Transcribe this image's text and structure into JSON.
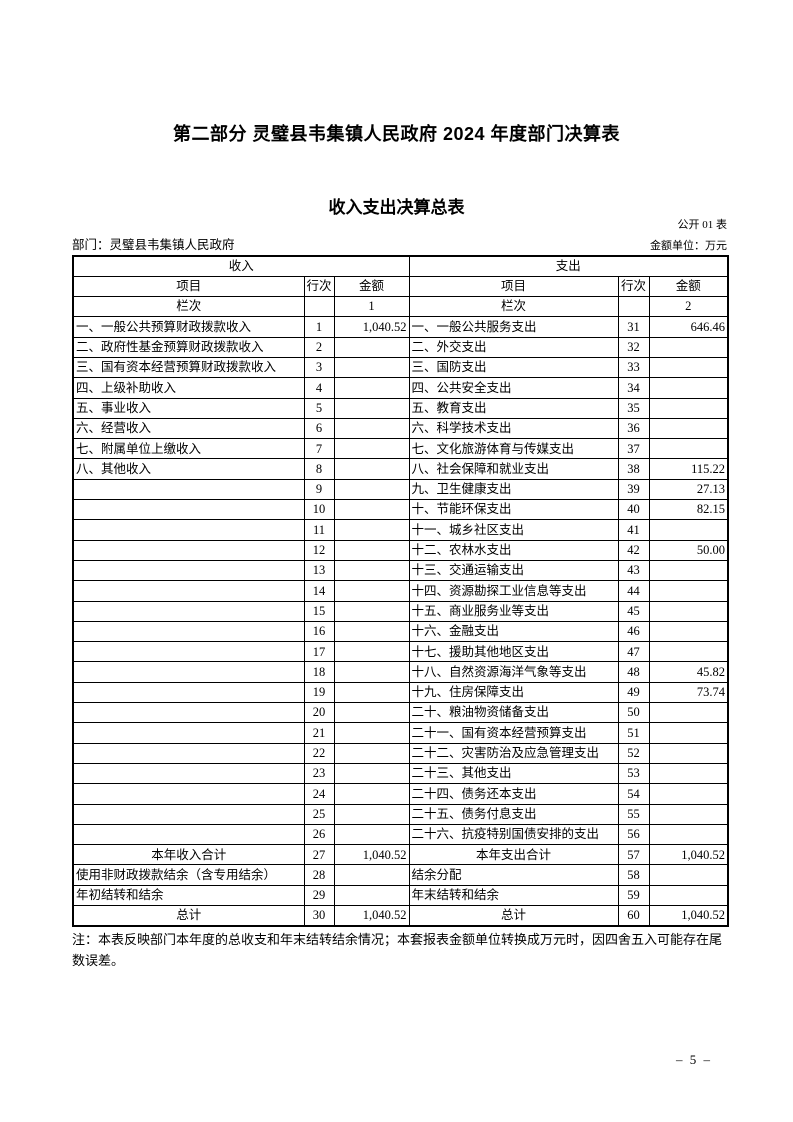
{
  "page": {
    "title": "第二部分 灵璧县韦集镇人民政府 2024 年度部门决算表",
    "subtitle": "收入支出决算总表",
    "form_code": "公开 01 表",
    "department": "部门：灵璧县韦集镇人民政府",
    "unit": "金额单位：万元",
    "note": "注：本表反映部门本年度的总收支和年末结转结余情况；本套报表金额单位转换成万元时，因四舍五入可能存在尾数误差。",
    "page_number": "– 5 –"
  },
  "table": {
    "sections": {
      "income": "收入",
      "expense": "支出"
    },
    "columns": {
      "item": "项目",
      "line": "行次",
      "amount": "金额"
    },
    "lanci": {
      "label": "栏次",
      "income_col": "1",
      "expense_col": "2"
    },
    "rows": [
      {
        "income_item": "一、一般公共预算财政拨款收入",
        "income_line": "1",
        "income_amount": "1,040.52",
        "expense_item": "一、一般公共服务支出",
        "expense_line": "31",
        "expense_amount": "646.46",
        "bold": false
      },
      {
        "income_item": "二、政府性基金预算财政拨款收入",
        "income_line": "2",
        "income_amount": "",
        "expense_item": "二、外交支出",
        "expense_line": "32",
        "expense_amount": "",
        "bold": false
      },
      {
        "income_item": "三、国有资本经营预算财政拨款收入",
        "income_line": "3",
        "income_amount": "",
        "expense_item": "三、国防支出",
        "expense_line": "33",
        "expense_amount": "",
        "bold": false
      },
      {
        "income_item": "四、上级补助收入",
        "income_line": "4",
        "income_amount": "",
        "expense_item": "四、公共安全支出",
        "expense_line": "34",
        "expense_amount": "",
        "bold": false
      },
      {
        "income_item": "五、事业收入",
        "income_line": "5",
        "income_amount": "",
        "expense_item": "五、教育支出",
        "expense_line": "35",
        "expense_amount": "",
        "bold": false
      },
      {
        "income_item": "六、经营收入",
        "income_line": "6",
        "income_amount": "",
        "expense_item": "六、科学技术支出",
        "expense_line": "36",
        "expense_amount": "",
        "bold": false
      },
      {
        "income_item": "七、附属单位上缴收入",
        "income_line": "7",
        "income_amount": "",
        "expense_item": "七、文化旅游体育与传媒支出",
        "expense_line": "37",
        "expense_amount": "",
        "bold": false
      },
      {
        "income_item": "八、其他收入",
        "income_line": "8",
        "income_amount": "",
        "expense_item": "八、社会保障和就业支出",
        "expense_line": "38",
        "expense_amount": "115.22",
        "bold": false
      },
      {
        "income_item": "",
        "income_line": "9",
        "income_amount": "",
        "expense_item": "九、卫生健康支出",
        "expense_line": "39",
        "expense_amount": "27.13",
        "bold": false
      },
      {
        "income_item": "",
        "income_line": "10",
        "income_amount": "",
        "expense_item": "十、节能环保支出",
        "expense_line": "40",
        "expense_amount": "82.15",
        "bold": false
      },
      {
        "income_item": "",
        "income_line": "11",
        "income_amount": "",
        "expense_item": "十一、城乡社区支出",
        "expense_line": "41",
        "expense_amount": "",
        "bold": false
      },
      {
        "income_item": "",
        "income_line": "12",
        "income_amount": "",
        "expense_item": "十二、农林水支出",
        "expense_line": "42",
        "expense_amount": "50.00",
        "bold": false
      },
      {
        "income_item": "",
        "income_line": "13",
        "income_amount": "",
        "expense_item": "十三、交通运输支出",
        "expense_line": "43",
        "expense_amount": "",
        "bold": false
      },
      {
        "income_item": "",
        "income_line": "14",
        "income_amount": "",
        "expense_item": "十四、资源勘探工业信息等支出",
        "expense_line": "44",
        "expense_amount": "",
        "bold": false
      },
      {
        "income_item": "",
        "income_line": "15",
        "income_amount": "",
        "expense_item": "十五、商业服务业等支出",
        "expense_line": "45",
        "expense_amount": "",
        "bold": false
      },
      {
        "income_item": "",
        "income_line": "16",
        "income_amount": "",
        "expense_item": "十六、金融支出",
        "expense_line": "46",
        "expense_amount": "",
        "bold": false
      },
      {
        "income_item": "",
        "income_line": "17",
        "income_amount": "",
        "expense_item": "十七、援助其他地区支出",
        "expense_line": "47",
        "expense_amount": "",
        "bold": false
      },
      {
        "income_item": "",
        "income_line": "18",
        "income_amount": "",
        "expense_item": "十八、自然资源海洋气象等支出",
        "expense_line": "48",
        "expense_amount": "45.82",
        "bold": false
      },
      {
        "income_item": "",
        "income_line": "19",
        "income_amount": "",
        "expense_item": "十九、住房保障支出",
        "expense_line": "49",
        "expense_amount": "73.74",
        "bold": false
      },
      {
        "income_item": "",
        "income_line": "20",
        "income_amount": "",
        "expense_item": "二十、粮油物资储备支出",
        "expense_line": "50",
        "expense_amount": "",
        "bold": false
      },
      {
        "income_item": "",
        "income_line": "21",
        "income_amount": "",
        "expense_item": "二十一、国有资本经营预算支出",
        "expense_line": "51",
        "expense_amount": "",
        "bold": false
      },
      {
        "income_item": "",
        "income_line": "22",
        "income_amount": "",
        "expense_item": "二十二、灾害防治及应急管理支出",
        "expense_line": "52",
        "expense_amount": "",
        "bold": false
      },
      {
        "income_item": "",
        "income_line": "23",
        "income_amount": "",
        "expense_item": "二十三、其他支出",
        "expense_line": "53",
        "expense_amount": "",
        "bold": false
      },
      {
        "income_item": "",
        "income_line": "24",
        "income_amount": "",
        "expense_item": "二十四、债务还本支出",
        "expense_line": "54",
        "expense_amount": "",
        "bold": false
      },
      {
        "income_item": "",
        "income_line": "25",
        "income_amount": "",
        "expense_item": "二十五、债务付息支出",
        "expense_line": "55",
        "expense_amount": "",
        "bold": false
      },
      {
        "income_item": "",
        "income_line": "26",
        "income_amount": "",
        "expense_item": "二十六、抗疫特别国债安排的支出",
        "expense_line": "56",
        "expense_amount": "",
        "bold": false
      },
      {
        "income_item": "本年收入合计",
        "income_line": "27",
        "income_amount": "1,040.52",
        "expense_item": "本年支出合计",
        "expense_line": "57",
        "expense_amount": "1,040.52",
        "bold": true
      },
      {
        "income_item": "使用非财政拨款结余（含专用结余）",
        "income_line": "28",
        "income_amount": "",
        "expense_item": "结余分配",
        "expense_line": "58",
        "expense_amount": "",
        "bold": false
      },
      {
        "income_item": "年初结转和结余",
        "income_line": "29",
        "income_amount": "",
        "expense_item": "年末结转和结余",
        "expense_line": "59",
        "expense_amount": "",
        "bold": false
      },
      {
        "income_item": "总计",
        "income_line": "30",
        "income_amount": "1,040.52",
        "expense_item": "总计",
        "expense_line": "60",
        "expense_amount": "1,040.52",
        "bold": true
      }
    ]
  }
}
